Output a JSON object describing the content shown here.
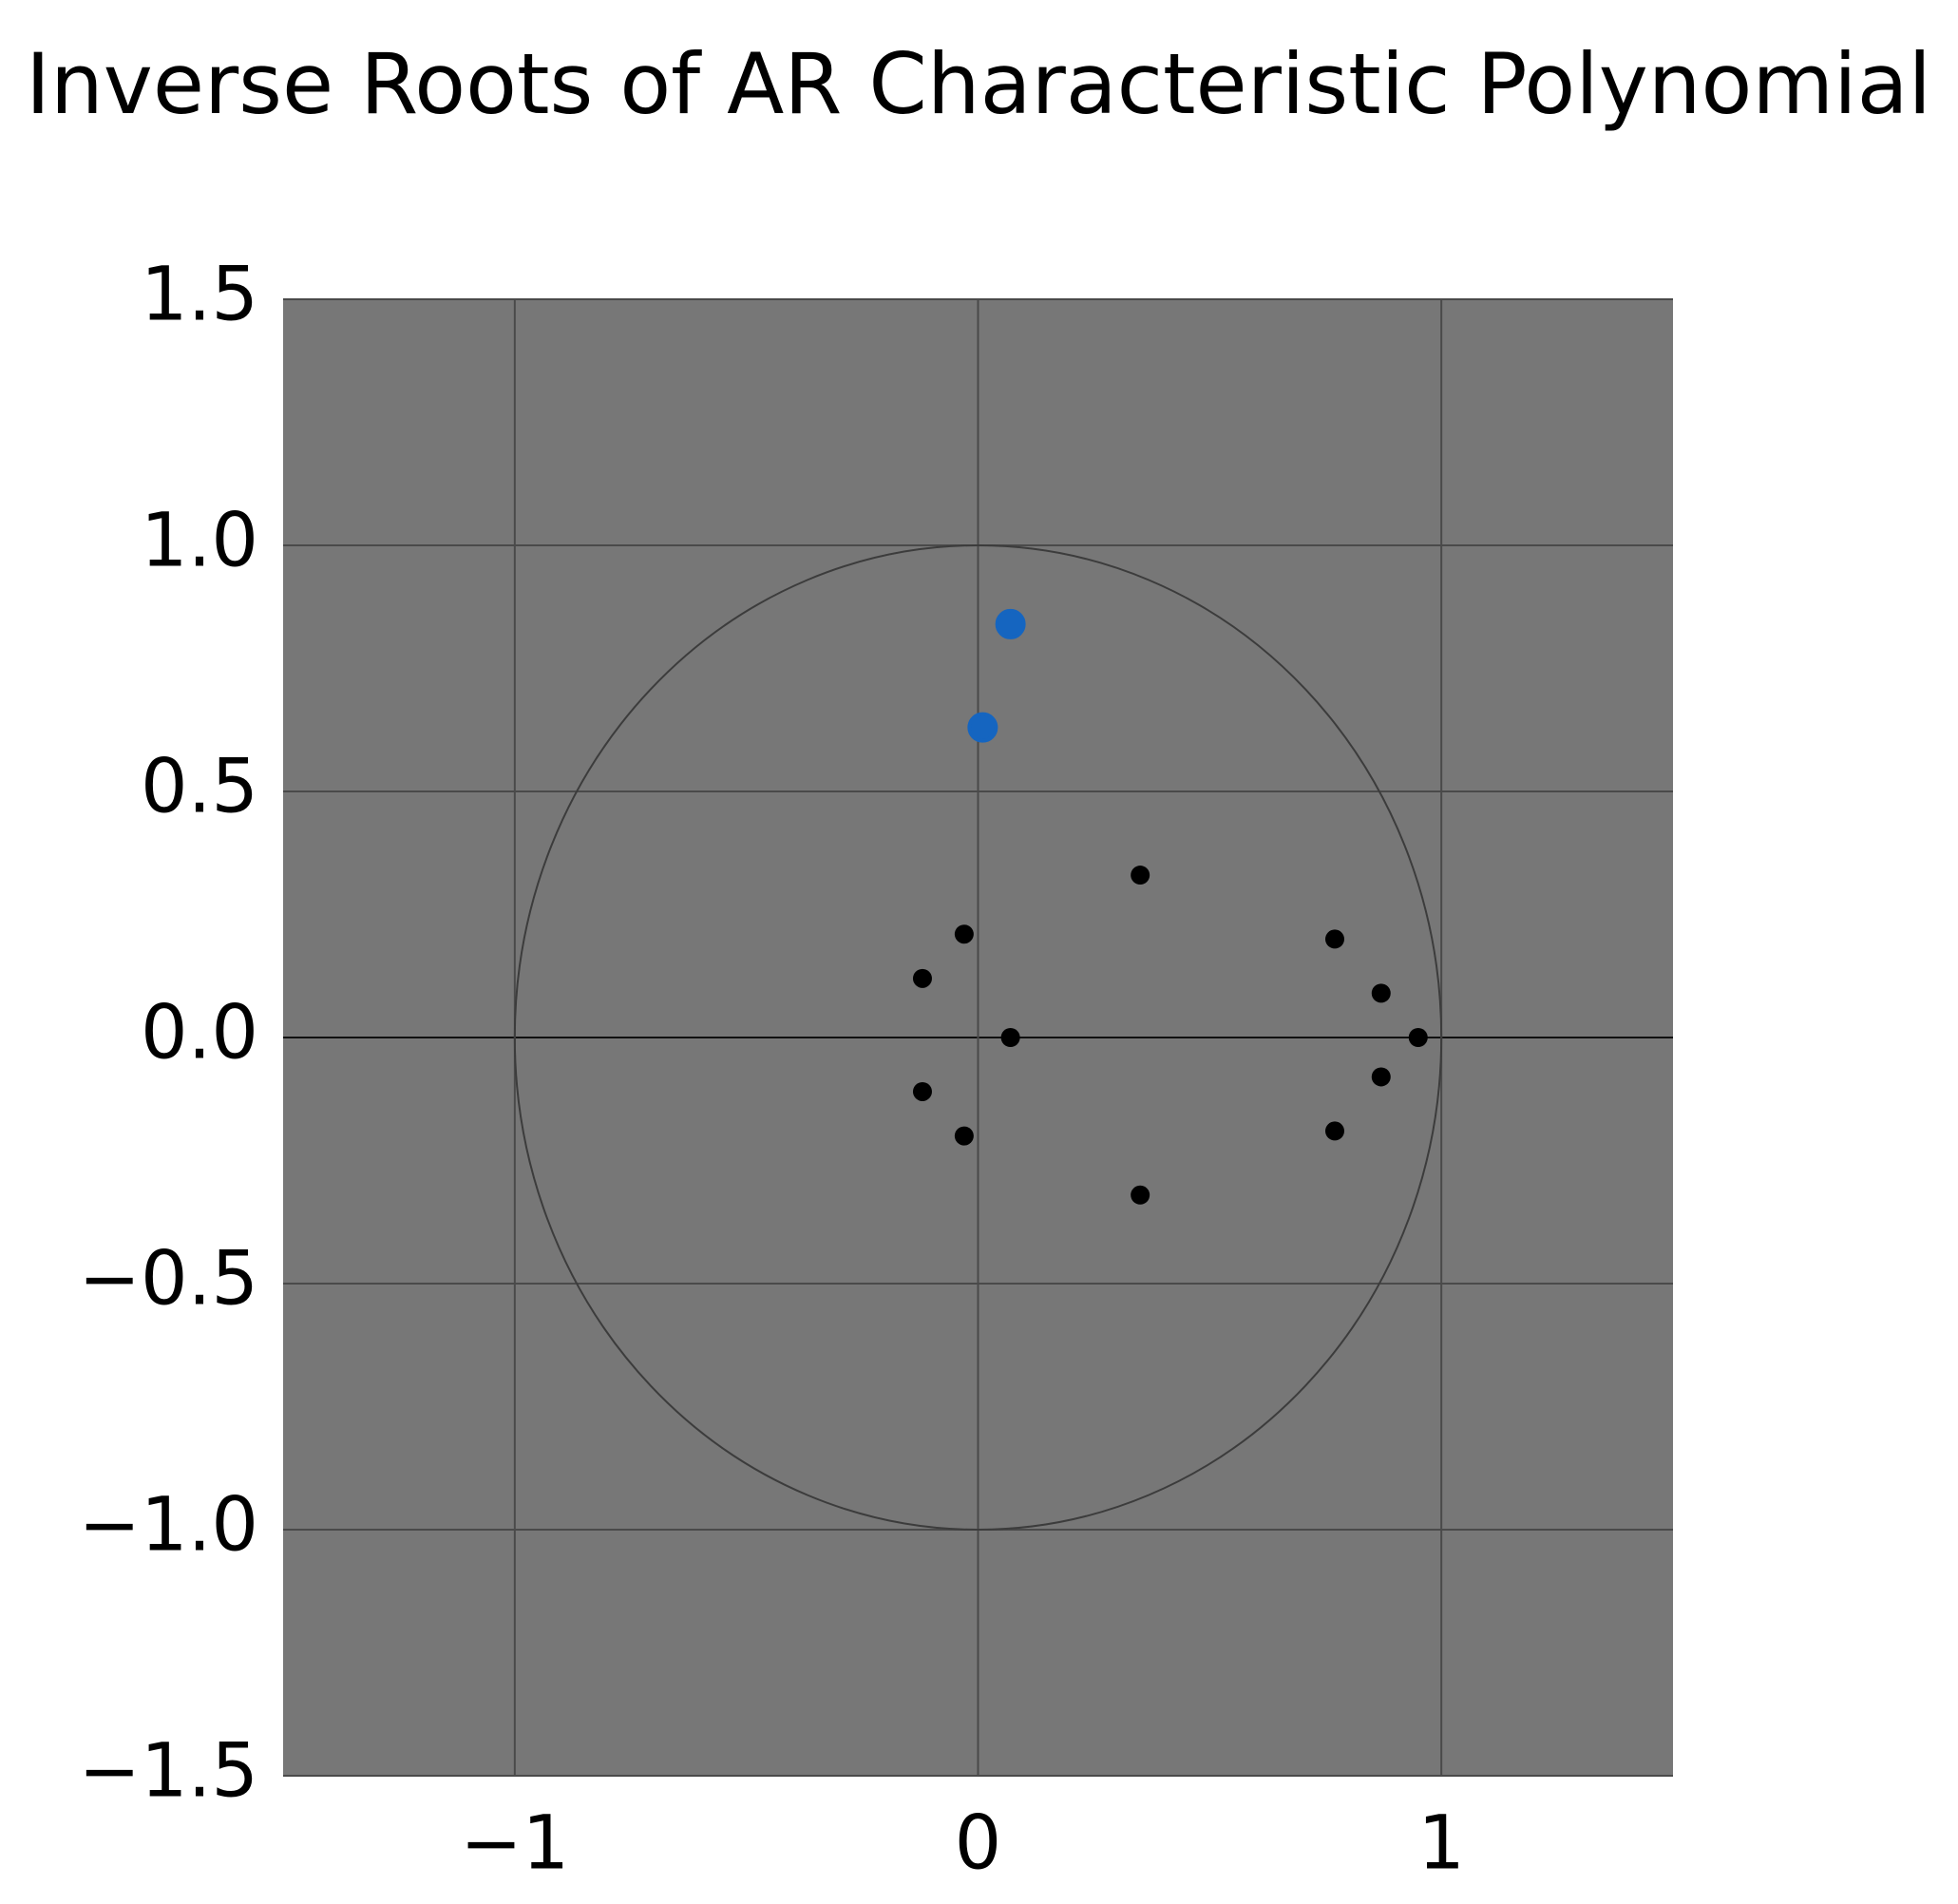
{
  "chart_data": {
    "type": "scatter",
    "title": "Inverse Roots of AR Characteristic Polynomial",
    "series": [
      {
        "color": "#000000",
        "x": [
          0.35,
          -0.03,
          -0.12,
          0.07,
          -0.12,
          -0.03,
          0.35,
          0.77,
          0.87,
          0.95,
          0.87,
          0.77
        ],
        "values": [
          0.33,
          0.21,
          0.12,
          0.0,
          -0.11,
          -0.2,
          -0.32,
          0.2,
          0.09,
          0.0,
          -0.08,
          -0.19
        ]
      },
      {
        "color": "#1565c0",
        "x": [
          0.07,
          0.01
        ],
        "values": [
          0.84,
          0.63
        ]
      }
    ],
    "xlim": [
      -1.5,
      1.5
    ],
    "xticks": [
      {
        "value": -1,
        "label": "−1"
      },
      0,
      1
    ],
    "ylim": [
      -1.5,
      1.5
    ],
    "yticks": [
      {
        "value": -1.5,
        "label": "−1.5"
      },
      {
        "value": -1.0,
        "label": "−1.0"
      },
      {
        "value": -0.5,
        "label": "−0.5"
      },
      {
        "value": 0,
        "label": "0.0"
      },
      0.5,
      {
        "value": 1.0,
        "label": "1.0"
      },
      1.5
    ],
    "grid": true,
    "unit_circle": true,
    "background": "#777777"
  }
}
